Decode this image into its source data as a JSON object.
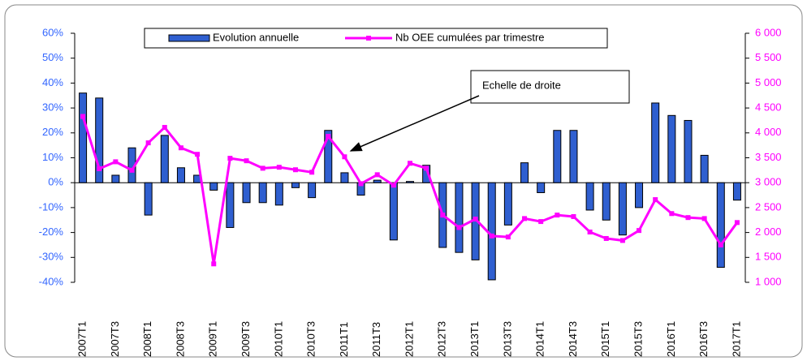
{
  "chart_data": {
    "type": "bar_line",
    "categories": [
      "2007T1",
      null,
      "2007T3",
      null,
      "2008T1",
      null,
      "2008T3",
      null,
      "2009T1",
      null,
      "2009T3",
      null,
      "2010T1",
      null,
      "2010T3",
      null,
      "2011T1",
      null,
      "2011T3",
      null,
      "2012T1",
      null,
      "2012T3",
      null,
      "2013T1",
      null,
      "2013T3",
      null,
      "2014T1",
      null,
      "2014T3",
      null,
      "2015T1",
      null,
      "2015T3",
      null,
      "2016T1",
      null,
      "2016T3",
      null,
      "2017T1"
    ],
    "series": [
      {
        "name": "Evolution annuelle",
        "type": "bar",
        "color": "#2f5fd0",
        "axis": "y",
        "values": [
          36,
          34,
          3,
          14,
          -13,
          19,
          6,
          3,
          -3,
          -18,
          -8,
          -8,
          -9,
          -2,
          -6,
          21,
          4,
          -5,
          1,
          -23,
          0.5,
          7,
          -26,
          -28,
          -31,
          -39,
          -17,
          8,
          -4,
          21,
          21,
          -11,
          -15,
          -21,
          -10,
          32,
          27,
          25,
          11,
          -34,
          -7
        ]
      },
      {
        "name": "Nb OEE cumulées par trimestre",
        "type": "line",
        "color": "#ff00ff",
        "axis": "y2",
        "values": [
          4330,
          3280,
          3420,
          3250,
          3800,
          4110,
          3700,
          3570,
          1370,
          3490,
          3440,
          3290,
          3310,
          3260,
          3210,
          3930,
          3520,
          2980,
          3160,
          2950,
          3390,
          3290,
          2350,
          2100,
          2270,
          1930,
          1910,
          2280,
          2220,
          2350,
          2320,
          2010,
          1880,
          1840,
          2040,
          2660,
          2380,
          2300,
          2280,
          1750,
          2200
        ]
      }
    ],
    "ylim": [
      -40,
      60
    ],
    "yticks": [
      {
        "value": -40,
        "label": "-40%"
      },
      {
        "value": -30,
        "label": "-30%"
      },
      {
        "value": -20,
        "label": "-20%"
      },
      {
        "value": -10,
        "label": "-10%"
      },
      {
        "value": 0,
        "label": "0%"
      },
      {
        "value": 10,
        "label": "10%"
      },
      {
        "value": 20,
        "label": "20%"
      },
      {
        "value": 30,
        "label": "30%"
      },
      {
        "value": 40,
        "label": "40%"
      },
      {
        "value": 50,
        "label": "50%"
      },
      {
        "value": 60,
        "label": "60%"
      }
    ],
    "y2lim": [
      1000,
      6000
    ],
    "y2ticks": [
      {
        "value": 1000,
        "label": "1 000"
      },
      {
        "value": 1500,
        "label": "1 500"
      },
      {
        "value": 2000,
        "label": "2 000"
      },
      {
        "value": 2500,
        "label": "2 500"
      },
      {
        "value": 3000,
        "label": "3 000"
      },
      {
        "value": 3500,
        "label": "3 500"
      },
      {
        "value": 4000,
        "label": "4 000"
      },
      {
        "value": 4500,
        "label": "4 500"
      },
      {
        "value": 5000,
        "label": "5 000"
      },
      {
        "value": 5500,
        "label": "5 500"
      },
      {
        "value": 6000,
        "label": "6 000"
      }
    ],
    "annotation": "Echelle de droite",
    "grid": false
  }
}
